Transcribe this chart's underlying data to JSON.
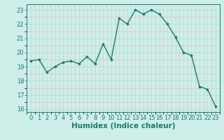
{
  "x": [
    0,
    1,
    2,
    3,
    4,
    5,
    6,
    7,
    8,
    9,
    10,
    11,
    12,
    13,
    14,
    15,
    16,
    17,
    18,
    19,
    20,
    21,
    22,
    23
  ],
  "y": [
    19.4,
    19.5,
    18.6,
    19.0,
    19.3,
    19.4,
    19.2,
    19.7,
    19.2,
    20.6,
    19.5,
    22.4,
    22.0,
    23.0,
    22.7,
    23.0,
    22.7,
    22.0,
    21.1,
    20.0,
    19.8,
    17.6,
    17.4,
    16.2
  ],
  "line_color": "#1a7a6e",
  "marker": "o",
  "markersize": 2.2,
  "linewidth": 1.0,
  "bg_color": "#ceeee9",
  "grid_major_color": "#aaddd6",
  "grid_minor_color": "#e8b8b8",
  "tick_color": "#1a7a6e",
  "xlabel": "Humidex (Indice chaleur)",
  "xlabel_fontsize": 7.5,
  "ylim": [
    15.8,
    23.4
  ],
  "xlim": [
    -0.5,
    23.5
  ],
  "yticks": [
    16,
    17,
    18,
    19,
    20,
    21,
    22,
    23
  ],
  "xticks": [
    0,
    1,
    2,
    3,
    4,
    5,
    6,
    7,
    8,
    9,
    10,
    11,
    12,
    13,
    14,
    15,
    16,
    17,
    18,
    19,
    20,
    21,
    22,
    23
  ],
  "tick_fontsize": 6.0
}
